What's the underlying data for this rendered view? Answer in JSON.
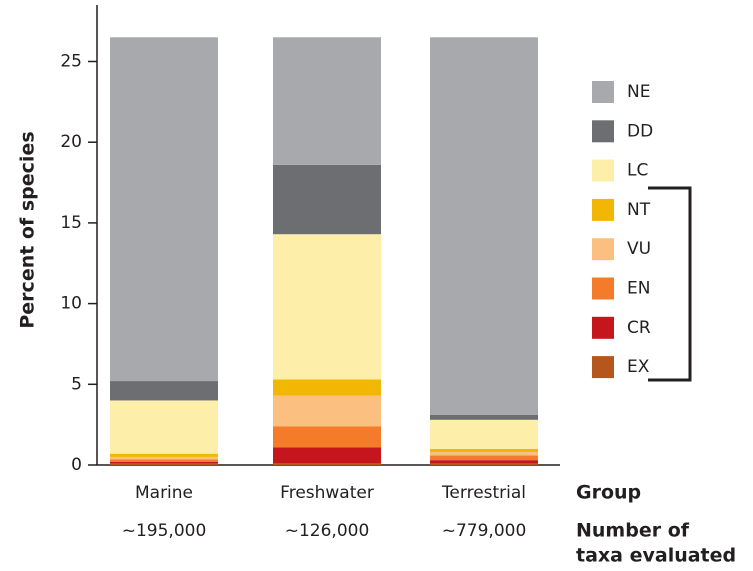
{
  "chart_data": {
    "type": "stacked-bar",
    "y_label": "Percent of species",
    "categories": [
      "Marine",
      "Freshwater",
      "Terrestrial"
    ],
    "x_label": "Group",
    "counts": [
      "~195,000",
      "~126,000",
      "~779,000"
    ],
    "count_label": [
      "Number of",
      "taxa evaluated"
    ],
    "ylim": [
      0,
      28.5
    ],
    "yticks": [
      0,
      5,
      10,
      15,
      20,
      25
    ],
    "series": [
      {
        "name": "NE",
        "color": "#a7a9ac",
        "values": [
          21.3,
          7.9,
          23.4
        ]
      },
      {
        "name": "DD",
        "color": "#6d6e71",
        "values": [
          1.2,
          4.3,
          0.3
        ]
      },
      {
        "name": "LC",
        "color": "#fdeeaa",
        "values": [
          3.3,
          9.0,
          1.8
        ]
      },
      {
        "name": "NT",
        "color": "#f2b705",
        "values": [
          0.2,
          1.0,
          0.2
        ]
      },
      {
        "name": "VU",
        "color": "#fbbf80",
        "values": [
          0.15,
          1.9,
          0.2
        ]
      },
      {
        "name": "EN",
        "color": "#f47b2a",
        "values": [
          0.15,
          1.3,
          0.3
        ]
      },
      {
        "name": "CR",
        "color": "#c4161c",
        "values": [
          0.1,
          1.0,
          0.2
        ]
      },
      {
        "name": "EX",
        "color": "#b5561c",
        "values": [
          0.1,
          0.1,
          0.1
        ]
      }
    ]
  }
}
